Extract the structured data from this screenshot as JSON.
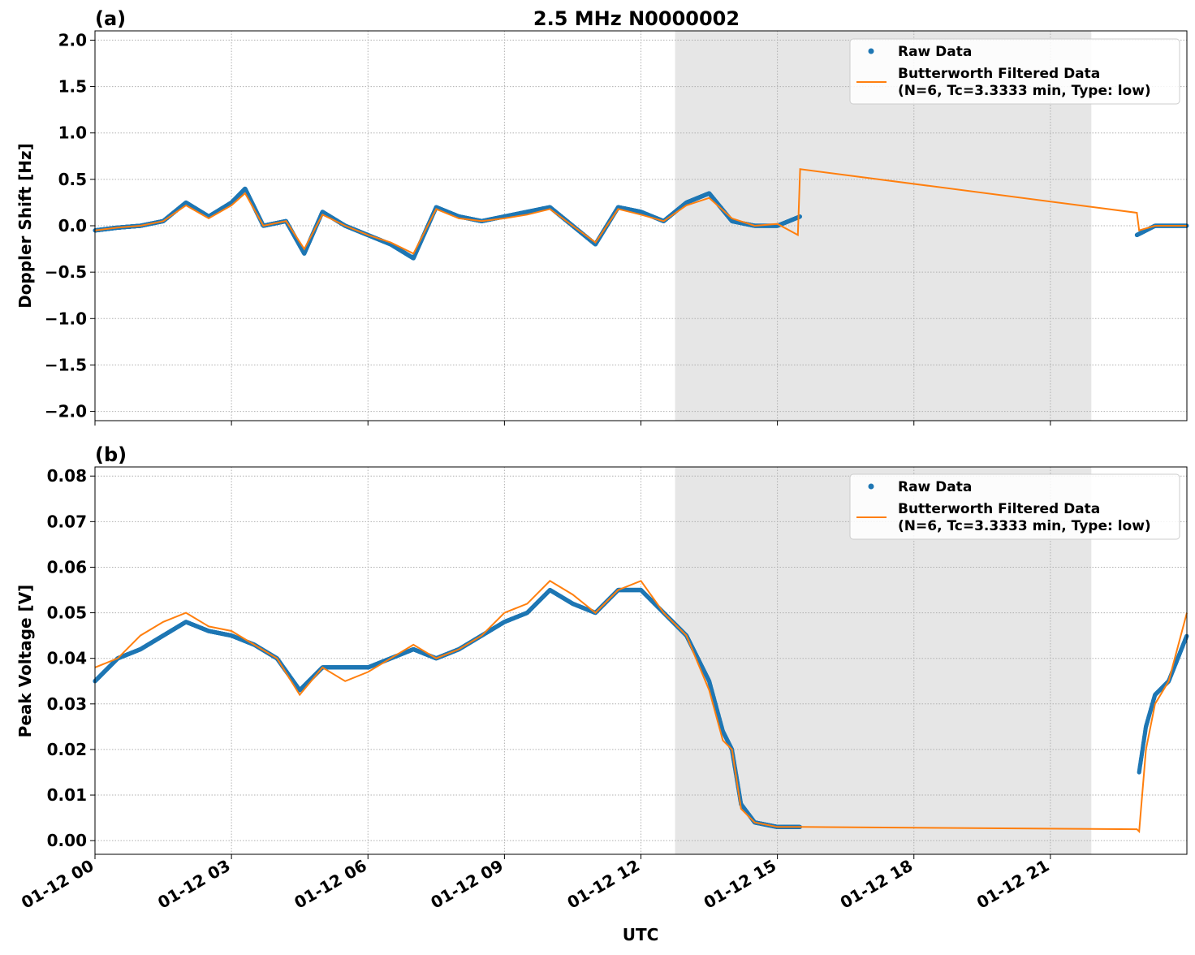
{
  "figure": {
    "title": "2.5 MHz N0000002",
    "xlabel": "UTC",
    "x_tick_labels": [
      "01-12 00",
      "01-12 03",
      "01-12 06",
      "01-12 09",
      "01-12 12",
      "01-12 15",
      "01-12 18",
      "01-12 21"
    ]
  },
  "chart_data": [
    {
      "type": "scatter",
      "panel_label": "(a)",
      "title": "2.5 MHz N0000002",
      "xlabel": "",
      "ylabel": "Doppler Shift [Hz]",
      "x_unit": "hours UTC on 01-12",
      "xlim": [
        0,
        24
      ],
      "ylim": [
        -2.1,
        2.1
      ],
      "y_ticks": [
        -2.0,
        -1.5,
        -1.0,
        -0.5,
        0.0,
        0.5,
        1.0,
        1.5,
        2.0
      ],
      "y_tick_labels": [
        "−2.0",
        "−1.5",
        "−1.0",
        "−0.5",
        "0.0",
        "0.5",
        "1.0",
        "1.5",
        "2.0"
      ],
      "grid": true,
      "legend_position": "top-right",
      "shaded_span": [
        12.75,
        21.9
      ],
      "series": [
        {
          "name": "Raw Data",
          "style": "dots",
          "color": "#1f77b4",
          "segments": [
            {
              "x": [
                0.0,
                0.5,
                1.0,
                1.5,
                2.0,
                2.5,
                3.0,
                3.3,
                3.7,
                4.2,
                4.6,
                5.0,
                5.5,
                6.0,
                6.5,
                7.0,
                7.5,
                8.0,
                8.5,
                9.0,
                9.5,
                10.0,
                10.5,
                11.0,
                11.5,
                12.0,
                12.5,
                13.0,
                13.5,
                14.0,
                14.5,
                15.0,
                15.5
              ],
              "center": [
                -0.05,
                -0.02,
                0.0,
                0.05,
                0.25,
                0.1,
                0.25,
                0.4,
                0.0,
                0.05,
                -0.3,
                0.15,
                0.0,
                -0.1,
                -0.2,
                -0.35,
                0.2,
                0.1,
                0.05,
                0.1,
                0.15,
                0.2,
                0.0,
                -0.2,
                0.2,
                0.15,
                0.05,
                0.25,
                0.35,
                0.05,
                0.0,
                0.0,
                0.1
              ],
              "spread": [
                0.3,
                0.25,
                0.3,
                0.35,
                0.5,
                0.45,
                0.55,
                0.8,
                0.6,
                0.55,
                0.55,
                0.5,
                0.45,
                0.55,
                0.55,
                0.6,
                0.45,
                0.45,
                0.4,
                0.4,
                0.45,
                0.45,
                0.45,
                0.45,
                0.45,
                0.5,
                0.45,
                0.55,
                0.6,
                1.2,
                1.6,
                1.7,
                1.7
              ]
            },
            {
              "x": [
                22.9,
                23.3,
                23.6,
                24.0
              ],
              "center": [
                -0.1,
                0.0,
                0.0,
                0.0
              ],
              "spread": [
                0.7,
                0.25,
                0.2,
                0.3
              ]
            }
          ]
        },
        {
          "name": "Butterworth Filtered Data\n(N=6, Tc=3.3333 min, Type: low)",
          "style": "line",
          "color": "#ff7f0e",
          "segments": [
            {
              "x": [
                0.0,
                0.5,
                1.0,
                1.5,
                2.0,
                2.5,
                3.0,
                3.3,
                3.7,
                4.2,
                4.6,
                5.0,
                5.5,
                6.0,
                6.5,
                7.0,
                7.5,
                8.0,
                8.5,
                9.0,
                9.5,
                10.0,
                10.5,
                11.0,
                11.5,
                12.0,
                12.5,
                13.0,
                13.5,
                14.0,
                14.5,
                15.0,
                15.45,
                15.5,
                22.9,
                22.95,
                23.3,
                23.6,
                24.0
              ],
              "y": [
                -0.05,
                -0.02,
                0.0,
                0.05,
                0.22,
                0.08,
                0.22,
                0.35,
                0.0,
                0.05,
                -0.25,
                0.12,
                0.0,
                -0.1,
                -0.18,
                -0.3,
                0.18,
                0.08,
                0.05,
                0.08,
                0.12,
                0.18,
                0.0,
                -0.18,
                0.18,
                0.12,
                0.05,
                0.22,
                0.3,
                0.08,
                0.0,
                0.02,
                -0.1,
                0.61,
                0.14,
                -0.05,
                0.0,
                0.0,
                0.0
              ]
            }
          ]
        }
      ]
    },
    {
      "type": "scatter",
      "panel_label": "(b)",
      "title": "",
      "xlabel": "UTC",
      "ylabel": "Peak Voltage [V]",
      "x_unit": "hours UTC on 01-12",
      "xlim": [
        0,
        24
      ],
      "ylim": [
        -0.003,
        0.082
      ],
      "y_ticks": [
        0.0,
        0.01,
        0.02,
        0.03,
        0.04,
        0.05,
        0.06,
        0.07,
        0.08
      ],
      "y_tick_labels": [
        "0.00",
        "0.01",
        "0.02",
        "0.03",
        "0.04",
        "0.05",
        "0.06",
        "0.07",
        "0.08"
      ],
      "grid": true,
      "legend_position": "top-right",
      "shaded_span": [
        12.75,
        21.9
      ],
      "series": [
        {
          "name": "Raw Data",
          "style": "dots",
          "color": "#1f77b4",
          "segments": [
            {
              "x": [
                0.0,
                0.5,
                1.0,
                1.5,
                2.0,
                2.5,
                3.0,
                3.5,
                4.0,
                4.5,
                5.0,
                5.5,
                6.0,
                6.5,
                7.0,
                7.5,
                8.0,
                8.5,
                9.0,
                9.5,
                10.0,
                10.5,
                11.0,
                11.5,
                12.0,
                12.5,
                13.0,
                13.5,
                13.8,
                14.0,
                14.2,
                14.5,
                15.0,
                15.5
              ],
              "center": [
                0.035,
                0.04,
                0.042,
                0.045,
                0.048,
                0.046,
                0.045,
                0.043,
                0.04,
                0.033,
                0.038,
                0.038,
                0.038,
                0.04,
                0.042,
                0.04,
                0.042,
                0.045,
                0.048,
                0.05,
                0.055,
                0.052,
                0.05,
                0.055,
                0.055,
                0.05,
                0.045,
                0.035,
                0.024,
                0.02,
                0.008,
                0.004,
                0.003,
                0.003
              ],
              "spread": [
                0.018,
                0.022,
                0.025,
                0.025,
                0.026,
                0.026,
                0.026,
                0.024,
                0.023,
                0.022,
                0.023,
                0.022,
                0.023,
                0.024,
                0.024,
                0.024,
                0.025,
                0.026,
                0.028,
                0.028,
                0.027,
                0.027,
                0.026,
                0.026,
                0.025,
                0.023,
                0.02,
                0.015,
                0.013,
                0.014,
                0.006,
                0.003,
                0.002,
                0.002
              ]
            },
            {
              "x": [
                22.95,
                23.1,
                23.3,
                23.6,
                24.0
              ],
              "center": [
                0.015,
                0.025,
                0.032,
                0.035,
                0.045
              ],
              "spread": [
                0.013,
                0.02,
                0.025,
                0.026,
                0.022
              ]
            }
          ]
        },
        {
          "name": "Butterworth Filtered Data\n(N=6, Tc=3.3333 min, Type: low)",
          "style": "line",
          "color": "#ff7f0e",
          "segments": [
            {
              "x": [
                0.0,
                0.5,
                1.0,
                1.5,
                2.0,
                2.5,
                3.0,
                3.5,
                4.0,
                4.5,
                5.0,
                5.5,
                6.0,
                6.5,
                7.0,
                7.5,
                8.0,
                8.5,
                9.0,
                9.5,
                10.0,
                10.5,
                11.0,
                11.5,
                12.0,
                12.5,
                13.0,
                13.5,
                13.8,
                14.0,
                14.2,
                14.5,
                15.0,
                15.5,
                22.9,
                22.95,
                23.1,
                23.3,
                23.6,
                24.0
              ],
              "y": [
                0.038,
                0.04,
                0.045,
                0.048,
                0.05,
                0.047,
                0.046,
                0.043,
                0.04,
                0.032,
                0.038,
                0.035,
                0.037,
                0.04,
                0.043,
                0.04,
                0.042,
                0.045,
                0.05,
                0.052,
                0.057,
                0.054,
                0.05,
                0.055,
                0.057,
                0.05,
                0.045,
                0.033,
                0.022,
                0.02,
                0.007,
                0.004,
                0.003,
                0.003,
                0.0025,
                0.002,
                0.02,
                0.03,
                0.035,
                0.05
              ]
            }
          ]
        }
      ]
    }
  ]
}
